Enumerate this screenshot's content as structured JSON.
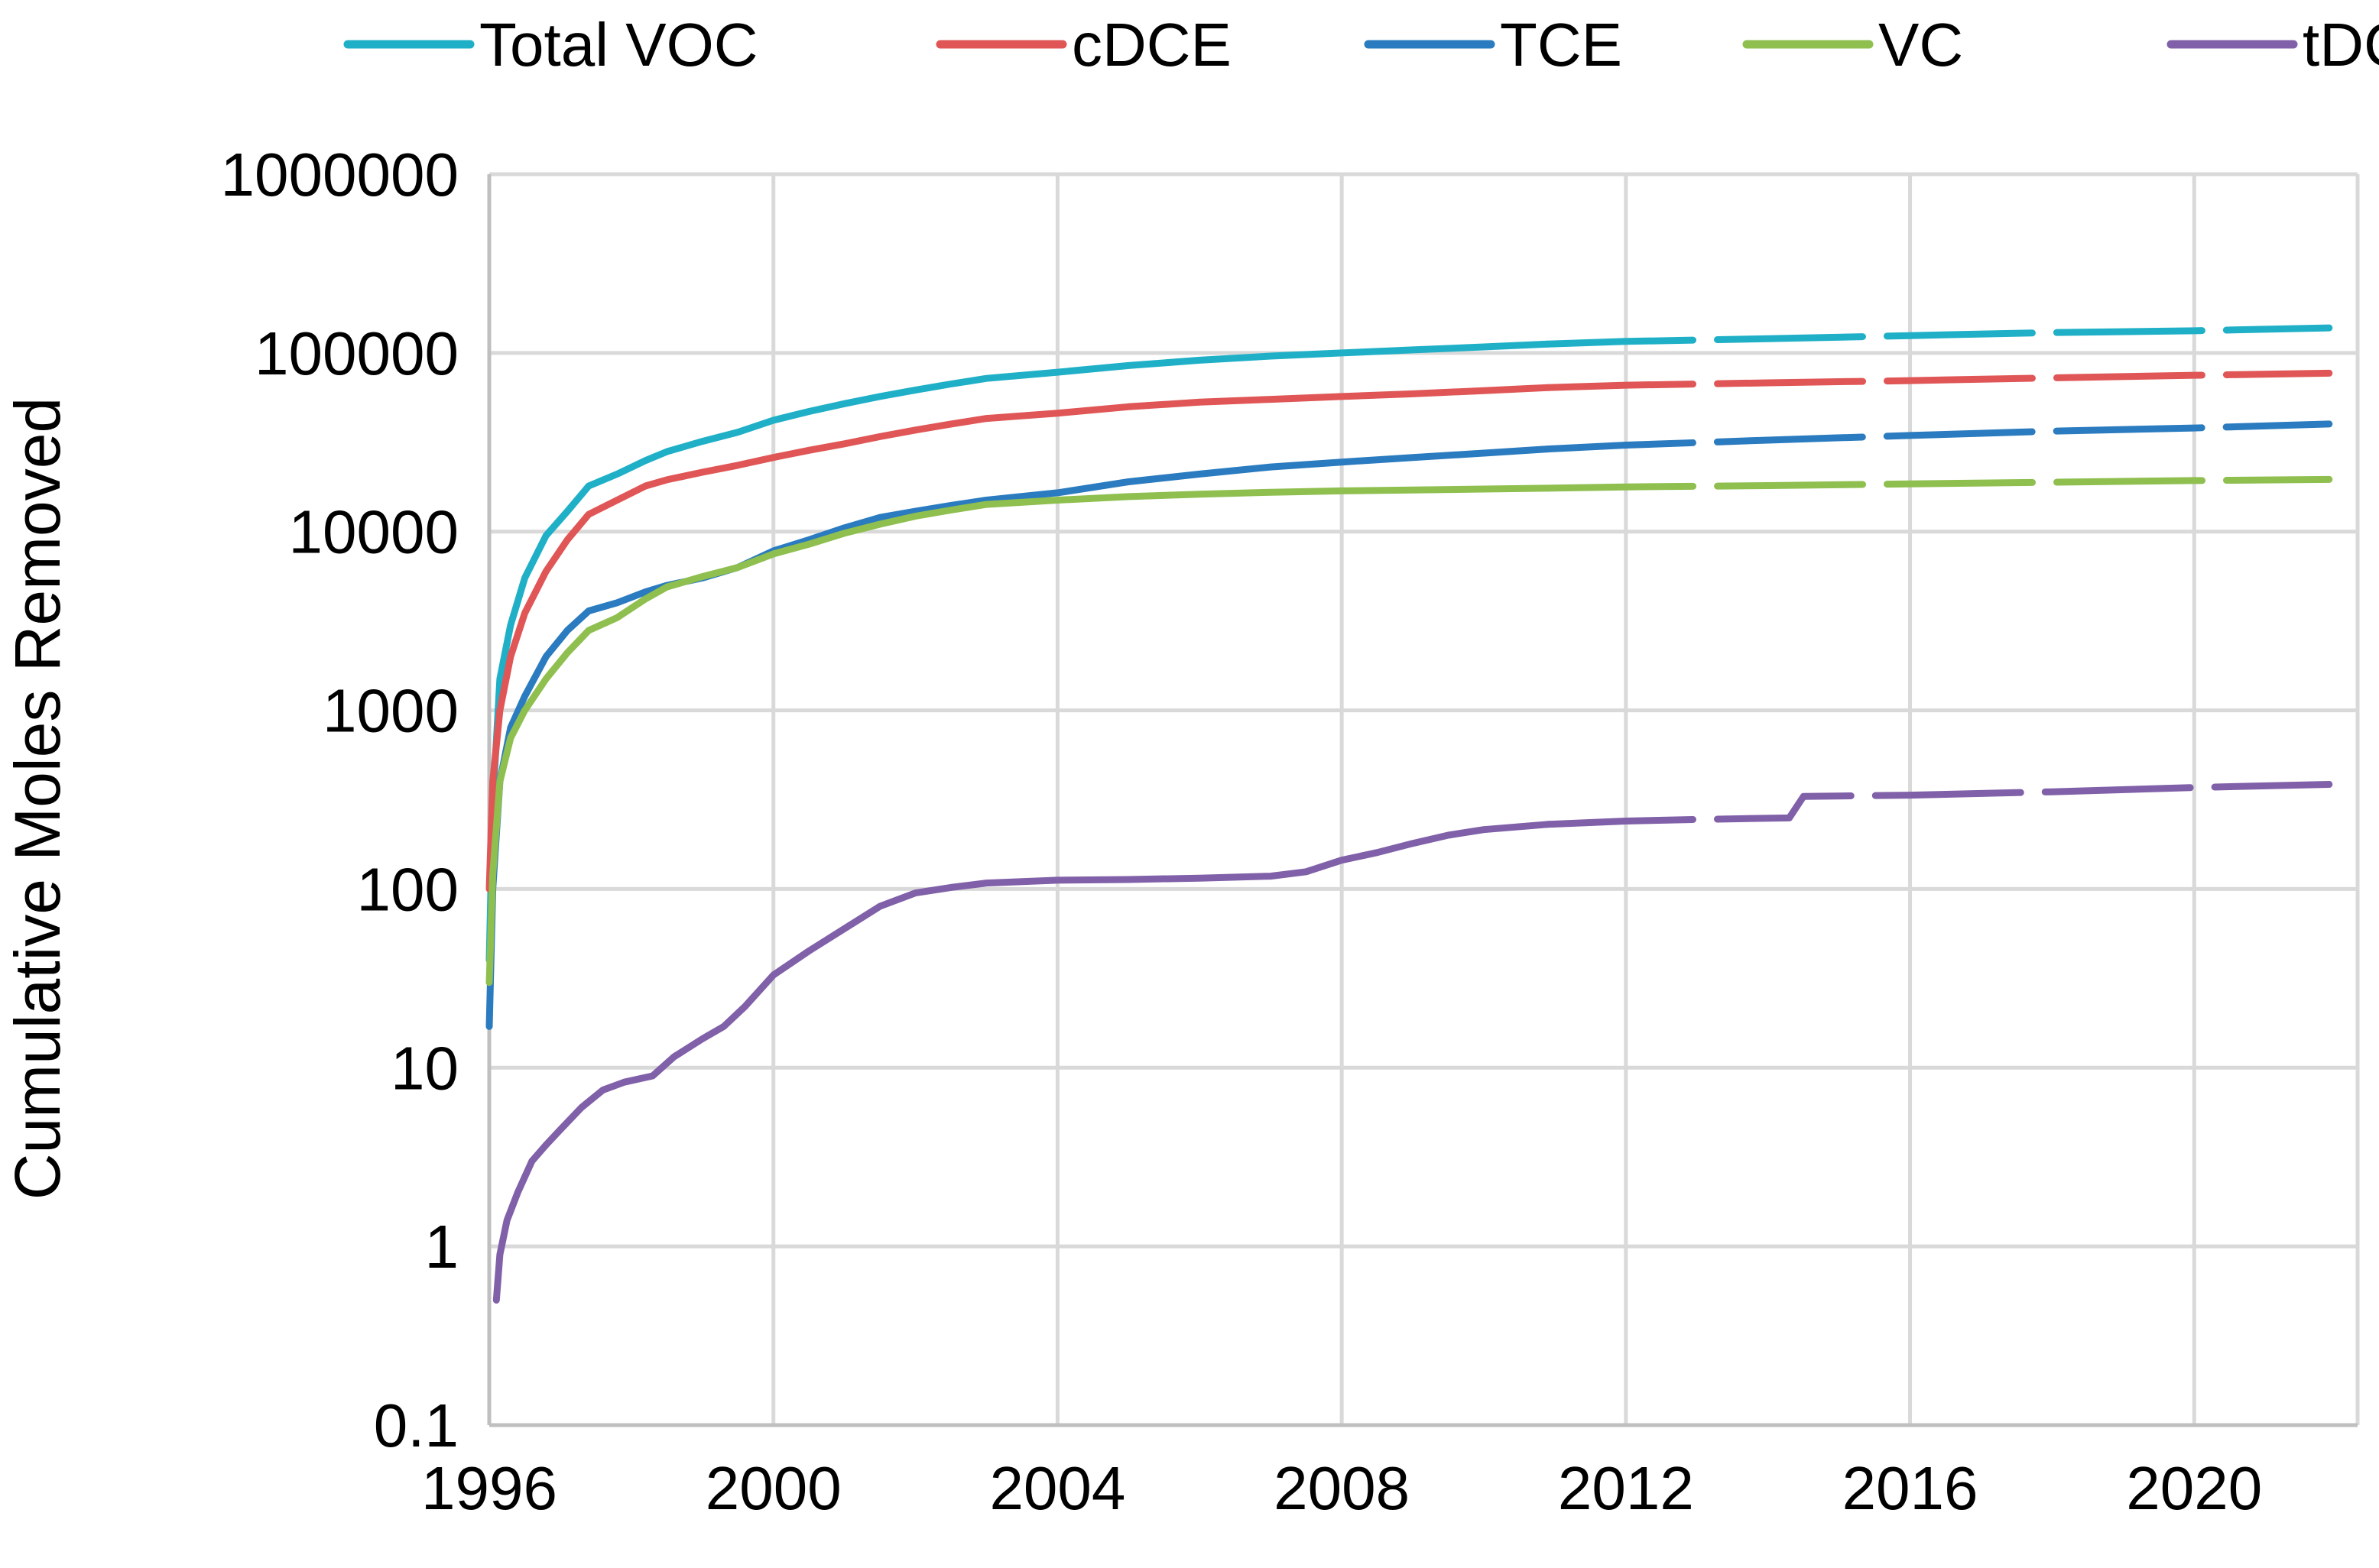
{
  "chart_data": {
    "type": "line",
    "title": "",
    "xlabel": "",
    "ylabel": "Cumulative Moles Removed",
    "yscale": "log",
    "xlim": [
      1996,
      2022.3
    ],
    "ylim": [
      0.1,
      1000000
    ],
    "x_ticks": [
      "1996",
      "2000",
      "2004",
      "2008",
      "2012",
      "2016",
      "2020"
    ],
    "x_tick_values": [
      1996,
      2000,
      2004,
      2008,
      2012,
      2016,
      2020
    ],
    "y_ticks": [
      "0.1",
      "1",
      "10",
      "100",
      "1000",
      "10000",
      "100000",
      "1000000"
    ],
    "y_tick_values": [
      0.1,
      1,
      10,
      100,
      1000,
      10000,
      100000,
      1000000
    ],
    "grid": true,
    "legend_position": "top",
    "projection_note_split_year": 2010.9,
    "series": [
      {
        "name": "Total VOC",
        "color": "#1fb0c7",
        "points": [
          [
            1996.0,
            40
          ],
          [
            1996.05,
            300
          ],
          [
            1996.15,
            1500
          ],
          [
            1996.3,
            3000
          ],
          [
            1996.5,
            5500
          ],
          [
            1996.8,
            9500
          ],
          [
            1997.1,
            13000
          ],
          [
            1997.4,
            18000
          ],
          [
            1997.8,
            21000
          ],
          [
            1998.2,
            25000
          ],
          [
            1998.5,
            28000
          ],
          [
            1999.0,
            32000
          ],
          [
            1999.5,
            36000
          ],
          [
            2000.0,
            42000
          ],
          [
            2000.5,
            47000
          ],
          [
            2001.0,
            52000
          ],
          [
            2001.5,
            57000
          ],
          [
            2002.0,
            62000
          ],
          [
            2002.5,
            67000
          ],
          [
            2003.0,
            72000
          ],
          [
            2004.0,
            78000
          ],
          [
            2005.0,
            85000
          ],
          [
            2006.0,
            91000
          ],
          [
            2007.0,
            96000
          ],
          [
            2008.0,
            100000
          ],
          [
            2009.0,
            104000
          ],
          [
            2010.0,
            108000
          ],
          [
            2010.9,
            112000
          ],
          [
            2012.0,
            116000
          ],
          [
            2014.0,
            120000
          ],
          [
            2016.0,
            125000
          ],
          [
            2018.0,
            130000
          ],
          [
            2020.0,
            133000
          ],
          [
            2021.9,
            138000
          ]
        ]
      },
      {
        "name": "cDCE",
        "color": "#e05656",
        "points": [
          [
            1996.0,
            100
          ],
          [
            1996.05,
            400
          ],
          [
            1996.15,
            1000
          ],
          [
            1996.3,
            2000
          ],
          [
            1996.5,
            3500
          ],
          [
            1996.8,
            6000
          ],
          [
            1997.1,
            9000
          ],
          [
            1997.4,
            12500
          ],
          [
            1997.8,
            15000
          ],
          [
            1998.2,
            18000
          ],
          [
            1998.5,
            19500
          ],
          [
            1999.0,
            21500
          ],
          [
            1999.5,
            23500
          ],
          [
            2000.0,
            26000
          ],
          [
            2000.5,
            28500
          ],
          [
            2001.0,
            31000
          ],
          [
            2001.5,
            34000
          ],
          [
            2002.0,
            37000
          ],
          [
            2002.5,
            40000
          ],
          [
            2003.0,
            43000
          ],
          [
            2004.0,
            46000
          ],
          [
            2005.0,
            50000
          ],
          [
            2006.0,
            53000
          ],
          [
            2007.0,
            55000
          ],
          [
            2008.0,
            57000
          ],
          [
            2009.0,
            59000
          ],
          [
            2010.0,
            61500
          ],
          [
            2010.9,
            64000
          ],
          [
            2012.0,
            66000
          ],
          [
            2014.0,
            68000
          ],
          [
            2016.0,
            70000
          ],
          [
            2018.0,
            72500
          ],
          [
            2020.0,
            75000
          ],
          [
            2021.9,
            77000
          ]
        ]
      },
      {
        "name": "TCE",
        "color": "#2a7bbf",
        "points": [
          [
            1996.0,
            17
          ],
          [
            1996.05,
            100
          ],
          [
            1996.15,
            400
          ],
          [
            1996.3,
            800
          ],
          [
            1996.5,
            1200
          ],
          [
            1996.8,
            2000
          ],
          [
            1997.1,
            2800
          ],
          [
            1997.4,
            3600
          ],
          [
            1997.8,
            4000
          ],
          [
            1998.2,
            4600
          ],
          [
            1998.5,
            5000
          ],
          [
            1999.0,
            5500
          ],
          [
            1999.5,
            6300
          ],
          [
            2000.0,
            7800
          ],
          [
            2000.5,
            9000
          ],
          [
            2001.0,
            10500
          ],
          [
            2001.5,
            12000
          ],
          [
            2002.0,
            13000
          ],
          [
            2002.5,
            14000
          ],
          [
            2003.0,
            15000
          ],
          [
            2004.0,
            16500
          ],
          [
            2005.0,
            19000
          ],
          [
            2006.0,
            21000
          ],
          [
            2007.0,
            23000
          ],
          [
            2008.0,
            24500
          ],
          [
            2009.0,
            26000
          ],
          [
            2010.0,
            27500
          ],
          [
            2010.9,
            29000
          ],
          [
            2012.0,
            30500
          ],
          [
            2014.0,
            32500
          ],
          [
            2016.0,
            34500
          ],
          [
            2018.0,
            36500
          ],
          [
            2020.0,
            38000
          ],
          [
            2021.9,
            40000
          ]
        ]
      },
      {
        "name": "VC",
        "color": "#8ebf4f",
        "points": [
          [
            1996.0,
            30
          ],
          [
            1996.05,
            120
          ],
          [
            1996.15,
            400
          ],
          [
            1996.3,
            700
          ],
          [
            1996.5,
            1000
          ],
          [
            1996.8,
            1500
          ],
          [
            1997.1,
            2100
          ],
          [
            1997.4,
            2800
          ],
          [
            1997.8,
            3300
          ],
          [
            1998.2,
            4200
          ],
          [
            1998.5,
            4900
          ],
          [
            1999.0,
            5600
          ],
          [
            1999.5,
            6300
          ],
          [
            2000.0,
            7500
          ],
          [
            2000.5,
            8500
          ],
          [
            2001.0,
            9800
          ],
          [
            2001.5,
            11000
          ],
          [
            2002.0,
            12200
          ],
          [
            2002.5,
            13200
          ],
          [
            2003.0,
            14200
          ],
          [
            2004.0,
            15000
          ],
          [
            2005.0,
            15700
          ],
          [
            2006.0,
            16200
          ],
          [
            2007.0,
            16600
          ],
          [
            2008.0,
            16900
          ],
          [
            2009.0,
            17100
          ],
          [
            2010.0,
            17300
          ],
          [
            2010.9,
            17500
          ],
          [
            2012.0,
            17800
          ],
          [
            2014.0,
            18100
          ],
          [
            2016.0,
            18500
          ],
          [
            2018.0,
            18900
          ],
          [
            2020.0,
            19300
          ],
          [
            2021.9,
            19600
          ]
        ]
      },
      {
        "name": "tDCE",
        "color": "#8060a8",
        "points": [
          [
            1996.1,
            0.5
          ],
          [
            1996.15,
            0.9
          ],
          [
            1996.25,
            1.4
          ],
          [
            1996.4,
            2.0
          ],
          [
            1996.6,
            3.0
          ],
          [
            1996.8,
            3.7
          ],
          [
            1997.0,
            4.5
          ],
          [
            1997.3,
            6.0
          ],
          [
            1997.6,
            7.5
          ],
          [
            1997.9,
            8.3
          ],
          [
            1998.3,
            9.0
          ],
          [
            1998.6,
            11.5
          ],
          [
            1999.0,
            14.5
          ],
          [
            1999.3,
            17.0
          ],
          [
            1999.6,
            22.0
          ],
          [
            2000.0,
            33.0
          ],
          [
            2000.5,
            45.0
          ],
          [
            2001.0,
            60.0
          ],
          [
            2001.5,
            80.0
          ],
          [
            2002.0,
            95.0
          ],
          [
            2002.5,
            102.0
          ],
          [
            2003.0,
            108.0
          ],
          [
            2004.0,
            112.0
          ],
          [
            2005.0,
            113.0
          ],
          [
            2006.0,
            115.0
          ],
          [
            2007.0,
            118.0
          ],
          [
            2007.5,
            125.0
          ],
          [
            2008.0,
            145.0
          ],
          [
            2008.5,
            160.0
          ],
          [
            2009.0,
            180.0
          ],
          [
            2009.5,
            200.0
          ],
          [
            2010.0,
            215.0
          ],
          [
            2010.9,
            230.0
          ],
          [
            2012.0,
            240.0
          ],
          [
            2013.0,
            245.0
          ],
          [
            2014.3,
            250.0
          ],
          [
            2014.5,
            330.0
          ],
          [
            2016.0,
            335.0
          ],
          [
            2018.0,
            350.0
          ],
          [
            2020.0,
            370.0
          ],
          [
            2021.9,
            385.0
          ]
        ]
      }
    ]
  }
}
